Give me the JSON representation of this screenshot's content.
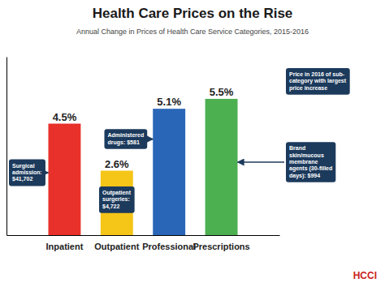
{
  "chart_data": {
    "type": "bar",
    "title": "Health Care Prices on the Rise",
    "subtitle": "Annual Change in Prices of Health Care Service Categories, 2015-2016",
    "categories": [
      "Inpatient",
      "Outpatient",
      "Professional",
      "Prescriptions"
    ],
    "values": [
      4.5,
      2.6,
      5.1,
      5.5
    ],
    "value_labels": [
      "4.5%",
      "2.6%",
      "5.1%",
      "5.5%"
    ],
    "colors": [
      "#E8312A",
      "#F5C518",
      "#2966B8",
      "#4CAF50"
    ],
    "data_labels": true,
    "ylim": [
      0,
      7.2
    ],
    "yticks": [],
    "tick_labels": "x",
    "grid": false,
    "annotations": [
      "Surgical\nadmission:\n$41,702",
      "Outpatient\nsurgeries:\n$4,722",
      "Administered\ndrugs: $581",
      "Price in 2016 of sub-\ncategory with largest\nprice increase",
      "Brand\nskin/mucous\nmembrane\nagents (30-filled\ndays): $994"
    ],
    "source": "HCCI"
  }
}
